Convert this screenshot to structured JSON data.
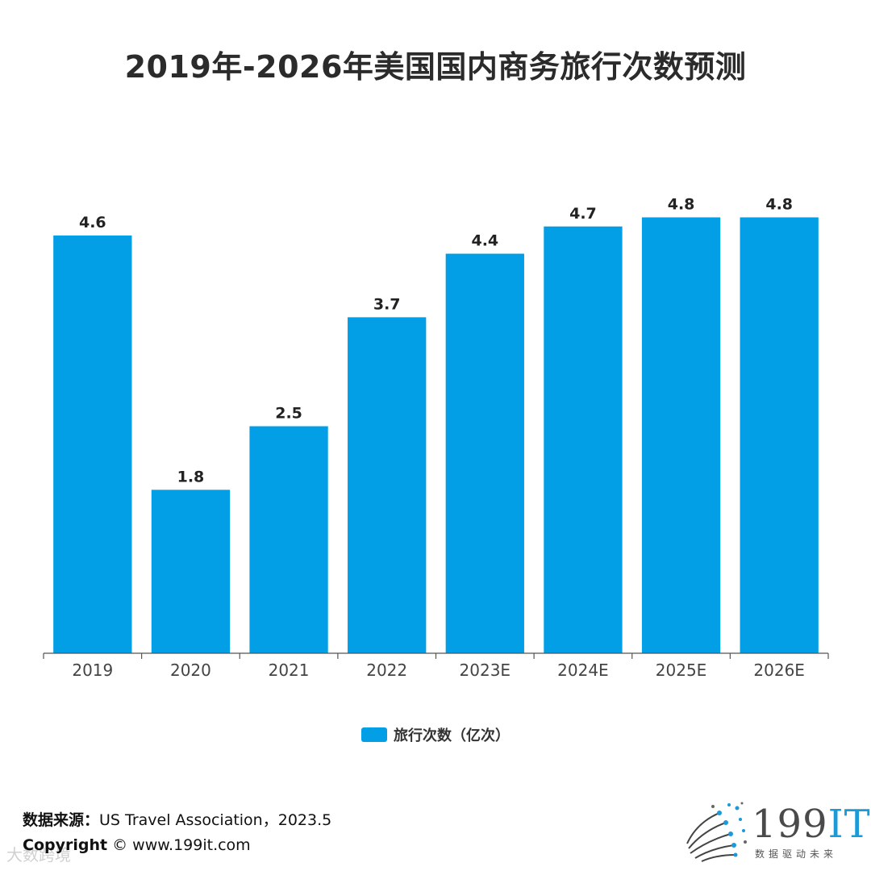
{
  "title": "2019年-2026年美国国内商务旅行次数预测",
  "chart_data": {
    "type": "bar",
    "title": "2019年-2026年美国国内商务旅行次数预测",
    "categories": [
      "2019",
      "2020",
      "2021",
      "2022",
      "2023E",
      "2024E",
      "2025E",
      "2026E"
    ],
    "series": [
      {
        "name": "旅行次数（亿次）",
        "values": [
          4.6,
          1.8,
          2.5,
          3.7,
          4.4,
          4.7,
          4.8,
          4.8
        ],
        "color": "#039fe6"
      }
    ],
    "ylim": [
      0,
      5.0
    ],
    "legend": "bottom-center",
    "grid": false
  },
  "legend": {
    "label": "旅行次数（亿次）"
  },
  "source": {
    "label": "数据来源：",
    "text": "US Travel Association，2023.5"
  },
  "copyright": {
    "label": "Copyright",
    "text": "©  www.199it.com"
  },
  "watermark": "大数跨境",
  "logo": {
    "main": "199",
    "accent": "IT",
    "sub": "数据驱动未来"
  }
}
